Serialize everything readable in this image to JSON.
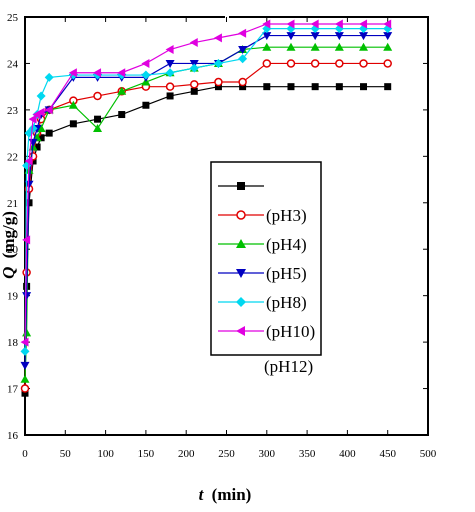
{
  "chart_data": {
    "type": "line",
    "xlabel_var": "t",
    "xlabel_unit": "(min)",
    "ylabel_var": "Q",
    "ylabel_unit": "(mg/g)",
    "xlim": [
      0,
      500
    ],
    "ylim": [
      16,
      25
    ],
    "xticks": [
      0,
      50,
      100,
      150,
      200,
      250,
      300,
      350,
      400,
      450,
      500
    ],
    "yticks": [
      16,
      17,
      18,
      19,
      20,
      21,
      22,
      23,
      24,
      25
    ],
    "grid": false,
    "legend_position": "center-right",
    "series": [
      {
        "name": "",
        "color": "#000000",
        "marker": "square",
        "x": [
          0,
          2,
          5,
          10,
          15,
          20,
          30,
          60,
          90,
          120,
          150,
          180,
          210,
          240,
          270,
          300,
          330,
          360,
          390,
          420,
          450
        ],
        "y": [
          16.9,
          19.2,
          21.0,
          21.9,
          22.2,
          22.4,
          22.5,
          22.7,
          22.8,
          22.9,
          23.1,
          23.3,
          23.4,
          23.5,
          23.5,
          23.5,
          23.5,
          23.5,
          23.5,
          23.5,
          23.5
        ]
      },
      {
        "name": "(pH3)",
        "color": "#e00000",
        "marker": "circle-open",
        "x": [
          0,
          2,
          5,
          10,
          15,
          20,
          30,
          60,
          90,
          120,
          150,
          180,
          210,
          240,
          270,
          300,
          330,
          360,
          390,
          420,
          450
        ],
        "y": [
          17.0,
          19.5,
          21.3,
          22.0,
          22.5,
          22.8,
          23.0,
          23.2,
          23.3,
          23.4,
          23.5,
          23.5,
          23.55,
          23.6,
          23.6,
          24.0,
          24.0,
          24.0,
          24.0,
          24.0,
          24.0
        ]
      },
      {
        "name": "(pH4)",
        "color": "#00c000",
        "marker": "triangle-up",
        "x": [
          0,
          2,
          5,
          10,
          15,
          20,
          30,
          60,
          90,
          120,
          150,
          180,
          210,
          240,
          270,
          300,
          330,
          360,
          390,
          420,
          450
        ],
        "y": [
          17.2,
          18.2,
          21.7,
          22.2,
          22.4,
          22.6,
          23.0,
          23.1,
          22.6,
          23.4,
          23.6,
          23.8,
          23.9,
          24.0,
          24.3,
          24.35,
          24.35,
          24.35,
          24.35,
          24.35,
          24.35
        ]
      },
      {
        "name": "(pH5)",
        "color": "#0000c0",
        "marker": "triangle-down",
        "x": [
          0,
          2,
          5,
          10,
          15,
          20,
          30,
          60,
          90,
          120,
          150,
          180,
          210,
          240,
          270,
          300,
          330,
          360,
          390,
          420,
          450
        ],
        "y": [
          17.5,
          19.0,
          21.4,
          22.3,
          22.6,
          22.9,
          23.0,
          23.7,
          23.7,
          23.7,
          23.7,
          24.0,
          24.0,
          24.0,
          24.3,
          24.6,
          24.6,
          24.6,
          24.6,
          24.6,
          24.6
        ]
      },
      {
        "name": "(pH8)",
        "color": "#00d8f0",
        "marker": "diamond",
        "x": [
          0,
          2,
          5,
          10,
          15,
          20,
          30,
          60,
          90,
          120,
          150,
          180,
          210,
          240,
          270,
          300,
          330,
          360,
          390,
          420,
          450
        ],
        "y": [
          17.8,
          21.8,
          22.5,
          22.6,
          22.9,
          23.3,
          23.7,
          23.75,
          23.75,
          23.75,
          23.75,
          23.8,
          23.9,
          24.0,
          24.1,
          24.75,
          24.75,
          24.75,
          24.75,
          24.75,
          24.75
        ]
      },
      {
        "name": "(pH10)",
        "color": "#e000e0",
        "marker": "triangle-left",
        "x": [
          0,
          2,
          5,
          10,
          15,
          20,
          30,
          60,
          90,
          120,
          150,
          180,
          210,
          240,
          270,
          300,
          330,
          360,
          390,
          420,
          450
        ],
        "y": [
          18.0,
          20.2,
          21.9,
          22.8,
          22.9,
          22.95,
          23.0,
          23.8,
          23.8,
          23.8,
          24.0,
          24.3,
          24.45,
          24.55,
          24.65,
          24.85,
          24.85,
          24.85,
          24.85,
          24.85,
          24.85
        ]
      }
    ],
    "extra_legend_label": "(pH12)"
  }
}
